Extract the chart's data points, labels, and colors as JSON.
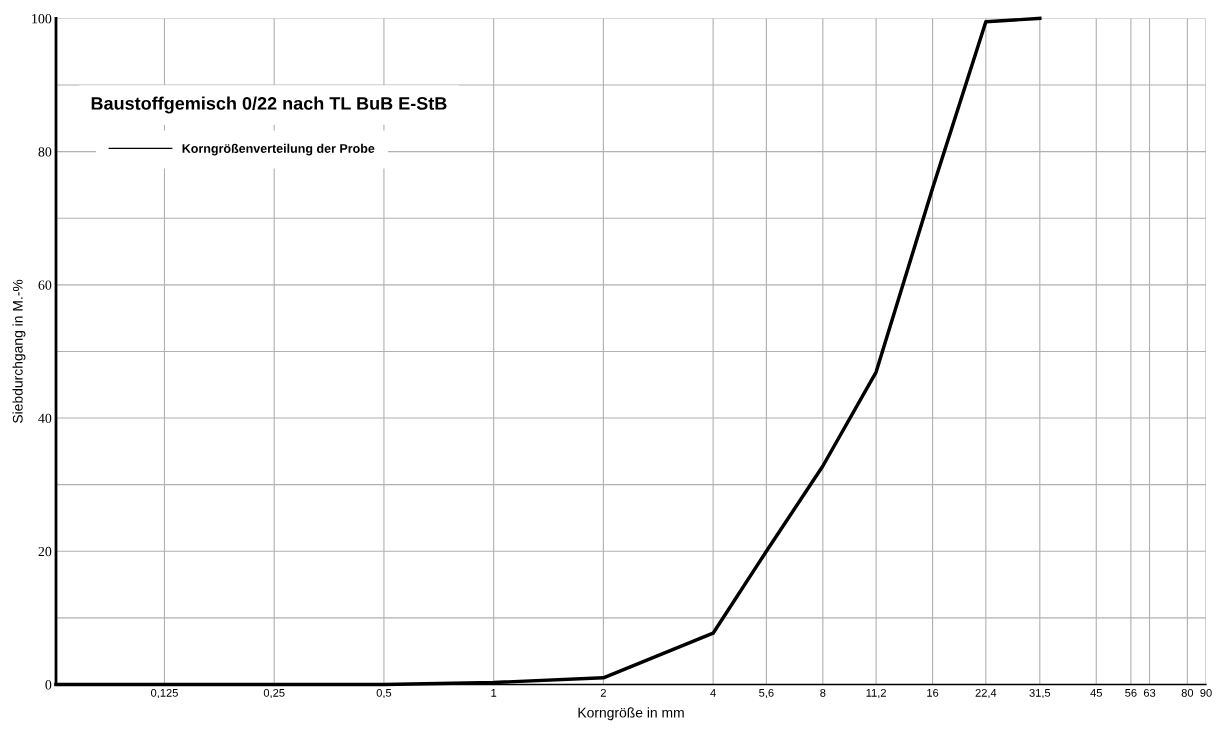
{
  "chart_data": {
    "type": "line",
    "title": "Baustoffgemisch 0/22 nach TL BuB E-StB",
    "xlabel": "Korngröße in mm",
    "ylabel": "Siebdurchgang in M.-%",
    "x": [
      0.063,
      0.125,
      0.25,
      0.5,
      1,
      2,
      4,
      5.6,
      8,
      11.2,
      16,
      22.4,
      31.5
    ],
    "series": [
      {
        "name": "Korngrößenverteilung der Probe",
        "color": "#000000",
        "values": [
          0,
          0,
          0,
          0,
          0.3,
          1.0,
          7.7,
          20,
          32.8,
          46.9,
          74.5,
          99.5,
          100
        ]
      }
    ],
    "log": "x",
    "xlim": [
      0.063,
      90
    ],
    "ylim": [
      0,
      100
    ],
    "xticks": [
      {
        "value": 0.125,
        "label": "0,125"
      },
      {
        "value": 0.25,
        "label": "0,25"
      },
      {
        "value": 0.5,
        "label": "0,5"
      },
      1,
      2,
      4,
      {
        "value": 5.6,
        "label": "5,6"
      },
      8,
      {
        "value": 11.2,
        "label": "11,2"
      },
      16,
      {
        "value": 22.4,
        "label": "22,4"
      },
      {
        "value": 31.5,
        "label": "31,5"
      },
      45,
      56,
      63,
      80,
      90
    ],
    "yticks": [
      0,
      {
        "value": 10,
        "label": null
      },
      20,
      {
        "value": 30,
        "label": null
      },
      40,
      {
        "value": 50,
        "label": null
      },
      60,
      {
        "value": 70,
        "label": null
      },
      80,
      {
        "value": 90,
        "label": null
      },
      100
    ],
    "grid": true,
    "legend": "top left",
    "marker": "none",
    "line_style": "solid"
  }
}
